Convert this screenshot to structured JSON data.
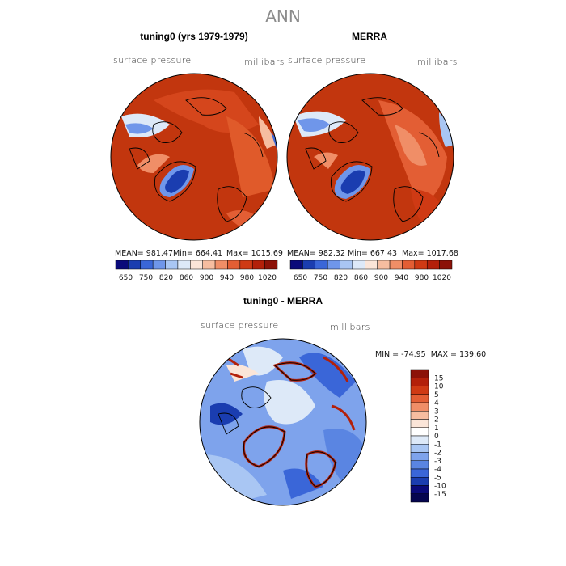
{
  "figure": {
    "title": "ANN"
  },
  "panels": [
    {
      "title": "tuning0 (yrs 1979-1979)",
      "variable": "surface pressure",
      "units": "millibars",
      "mean_label": "MEAN= 981.47",
      "min_label": "Min= 664.41",
      "max_label": "Max= 1015.69"
    },
    {
      "title": "MERRA",
      "variable": "surface pressure",
      "units": "millibars",
      "mean_label": "MEAN= 982.32",
      "min_label": "Min= 667.43",
      "max_label": "Max= 1017.68"
    },
    {
      "title": "tuning0 - MERRA",
      "variable": "surface pressure",
      "units": "millibars",
      "minmax_label": "MIN = -74.95  MAX = 139.60"
    }
  ],
  "chart_data": [
    {
      "type": "heatmap",
      "title": "tuning0 (yrs 1979-1979)",
      "projection": "polar stereographic (north pole)",
      "variable": "surface pressure",
      "units": "millibars",
      "stats": {
        "mean": 981.47,
        "min": 664.41,
        "max": 1015.69
      }
    },
    {
      "type": "heatmap",
      "title": "MERRA",
      "projection": "polar stereographic (north pole)",
      "variable": "surface pressure",
      "units": "millibars",
      "stats": {
        "mean": 982.32,
        "min": 667.43,
        "max": 1017.68
      }
    },
    {
      "type": "heatmap",
      "title": "tuning0 - MERRA",
      "projection": "polar stereographic (north pole)",
      "variable": "surface pressure",
      "units": "millibars",
      "stats": {
        "min": -74.95,
        "max": 139.6
      }
    }
  ],
  "colorbars": {
    "absolute": {
      "orientation": "horizontal",
      "labels": [
        "650",
        "750",
        "820",
        "860",
        "900",
        "940",
        "980",
        "1020"
      ],
      "colors": [
        "#0a0a7a",
        "#1a3db0",
        "#3a66d8",
        "#6f96ea",
        "#a9c6f3",
        "#dde9f8",
        "#fbe5d8",
        "#f6bda0",
        "#f08e67",
        "#e35e34",
        "#cf3a14",
        "#b3200a",
        "#8c1208"
      ]
    },
    "difference": {
      "orientation": "vertical",
      "labels": [
        "15",
        "10",
        "5",
        "4",
        "3",
        "2",
        "1",
        "0",
        "-1",
        "-2",
        "-3",
        "-4",
        "-5",
        "-10",
        "-15"
      ],
      "colors": [
        "#8c1208",
        "#b3200a",
        "#cf3a14",
        "#e35e34",
        "#f08e67",
        "#f6bda0",
        "#fbe5d8",
        "#ffffff",
        "#dde9f8",
        "#a9c6f3",
        "#7ea3ec",
        "#5a85e2",
        "#3a66d8",
        "#1a3db0",
        "#0a0a7a",
        "#05054f"
      ]
    }
  }
}
